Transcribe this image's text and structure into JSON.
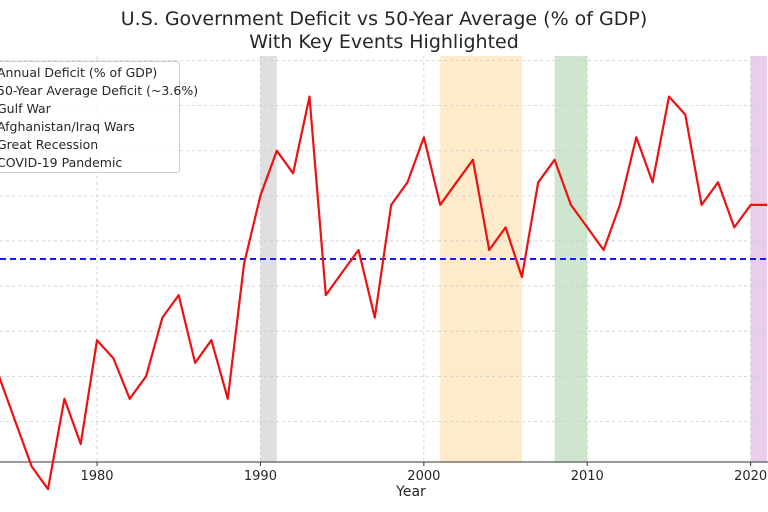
{
  "chart_data": {
    "type": "line",
    "title": "U.S. Government Deficit vs 50-Year Average (% of GDP)",
    "subtitle": "With Key Events Highlighted",
    "xlabel": "Year",
    "ylabel": "",
    "xlim": [
      1974,
      2021
    ],
    "ylim": [
      -0.9,
      8.1
    ],
    "x_ticks": [
      1980,
      1990,
      2000,
      2010,
      2020
    ],
    "grid": true,
    "legend_position": "upper-left",
    "series": [
      {
        "name": "Annual Deficit (% of GDP)",
        "color": "#ee1111",
        "x": [
          1974,
          1975,
          1976,
          1977,
          1978,
          1979,
          1980,
          1981,
          1982,
          1983,
          1984,
          1985,
          1986,
          1987,
          1988,
          1989,
          1990,
          1991,
          1992,
          1993,
          1994,
          1995,
          1996,
          1997,
          1998,
          1999,
          2000,
          2001,
          2002,
          2003,
          2004,
          2005,
          2006,
          2007,
          2008,
          2009,
          2010,
          2011,
          2012,
          2013,
          2014,
          2015,
          2016,
          2017,
          2018,
          2019,
          2020,
          2021
        ],
        "values": [
          1.0,
          0.0,
          -1.0,
          -1.5,
          0.5,
          -0.5,
          1.8,
          1.4,
          0.5,
          1.0,
          2.3,
          2.8,
          1.3,
          1.8,
          0.5,
          3.5,
          5.0,
          6.0,
          5.5,
          7.2,
          2.8,
          3.3,
          3.8,
          2.3,
          4.8,
          5.3,
          6.3,
          4.8,
          5.3,
          5.8,
          3.8,
          4.3,
          3.2,
          5.3,
          5.8,
          4.8,
          4.3,
          3.8,
          4.8,
          6.3,
          5.3,
          7.2,
          6.8,
          4.8,
          5.3,
          4.3,
          4.8,
          4.8
        ]
      },
      {
        "name": "50-Year Average Deficit (~3.6%)",
        "color": "#1a1aee",
        "values": [
          3.6
        ]
      }
    ],
    "spans": [
      {
        "name": "Gulf War",
        "start": 1990,
        "end": 1991,
        "color": "#d9d9d9"
      },
      {
        "name": "Afghanistan/Iraq Wars",
        "start": 2001,
        "end": 2006,
        "color": "#ffe6bf"
      },
      {
        "name": "Great Recession",
        "start": 2008,
        "end": 2010,
        "color": "#c6e2c6"
      },
      {
        "name": "COVID-19 Pandemic",
        "start": 2020,
        "end": 2021,
        "color": "#e4c6e4"
      }
    ],
    "legend_entries": [
      "Annual Deficit (% of GDP)",
      "50-Year Average Deficit (~3.6%)",
      "Gulf War",
      "Afghanistan/Iraq Wars",
      "Great Recession",
      "COVID-19 Pandemic"
    ]
  }
}
